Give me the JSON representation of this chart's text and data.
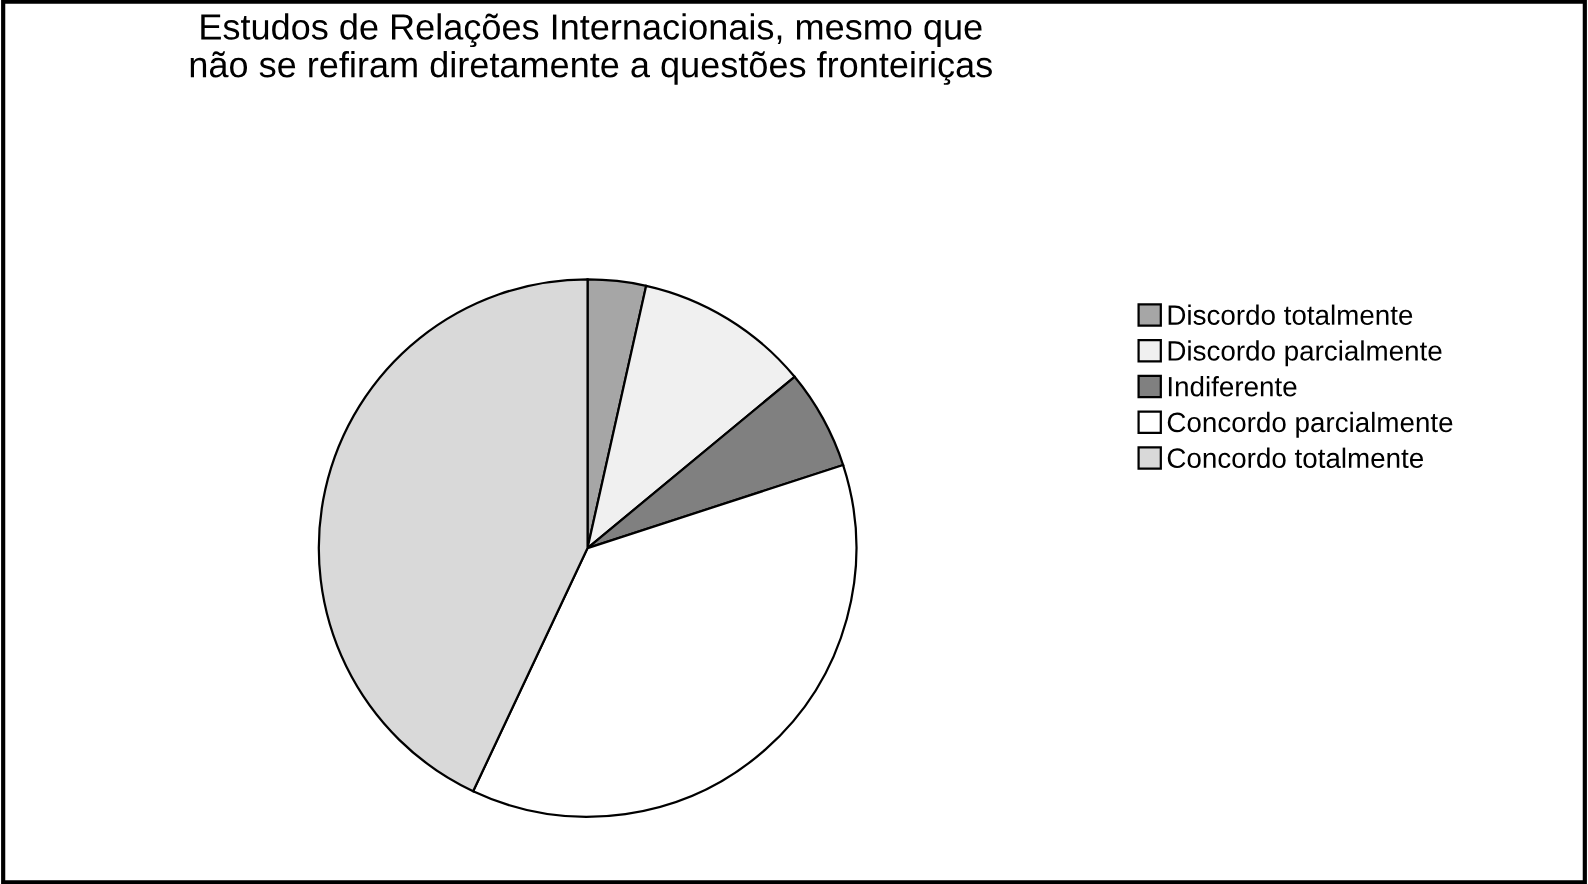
{
  "chart_data": {
    "type": "pie",
    "title": "Estudos de Relações Internacionais, mesmo que\nnão se refiram diretamente a questões fronteiriças",
    "categories": [
      "Discordo totalmente",
      "Discordo parcialmente",
      "Indiferente",
      "Concordo parcialmente",
      "Concordo totalmente"
    ],
    "values": [
      3.5,
      10.5,
      6,
      37,
      43
    ],
    "colors": [
      "#a6a6a6",
      "#f0f0f0",
      "#808080",
      "#ffffff",
      "#d9d9d9"
    ],
    "legend": "right"
  }
}
